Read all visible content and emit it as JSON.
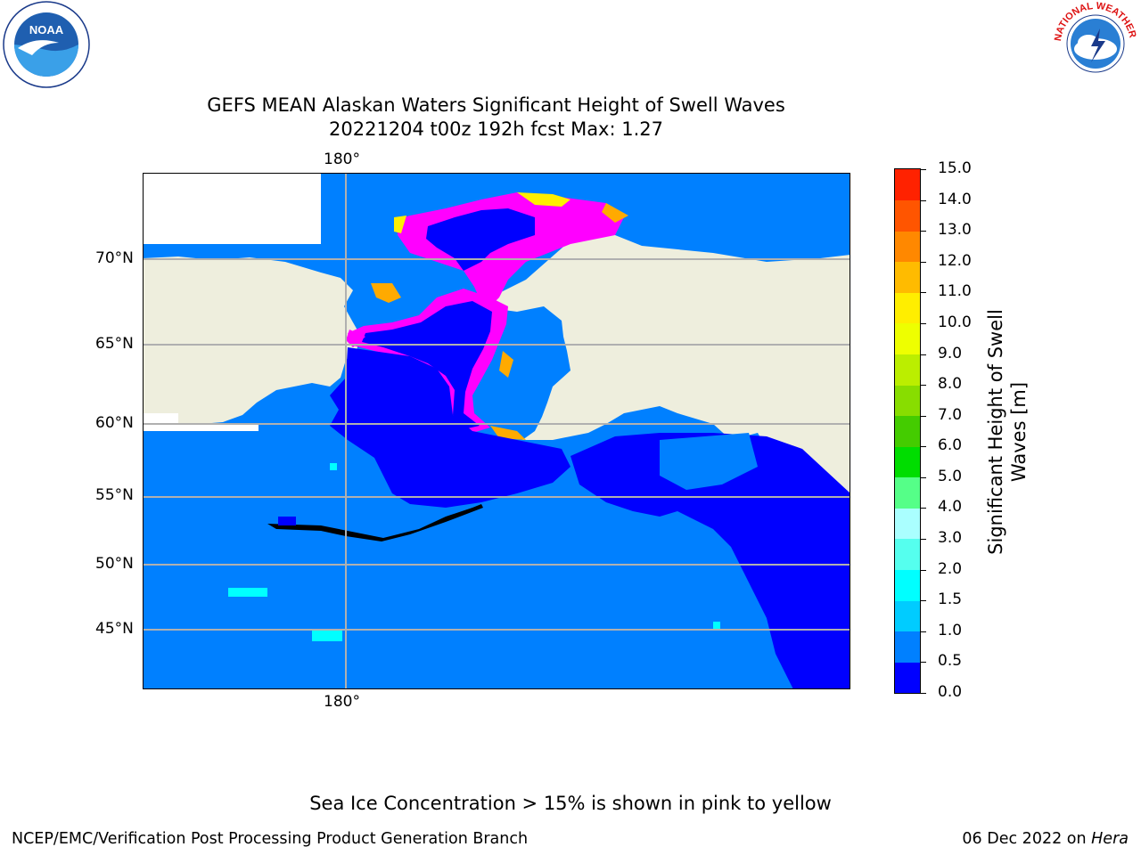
{
  "title": {
    "line1": "GEFS MEAN Alaskan Waters Significant Height of Swell Waves",
    "line2": "20221204 t00z 192h fcst   Max: 1.27"
  },
  "map": {
    "lon_label": "180°",
    "lat_labels": [
      "70°N",
      "65°N",
      "60°N",
      "55°N",
      "50°N",
      "45°N"
    ],
    "colors": {
      "ocean": "#0080ff",
      "deep": "#0000ff",
      "land": "#eeeedd",
      "ice_pink": "#ff00ff",
      "ice_light": "#ff66ee",
      "ice_yellow": "#ffee00",
      "ice_orange": "#ffaa00",
      "grid": "#b0b0b0"
    }
  },
  "colorbar": {
    "title": "Significant Height of Swell Waves [m]",
    "tick_labels": [
      "0.0",
      "0.5",
      "1.0",
      "1.5",
      "2.0",
      "3.0",
      "4.0",
      "5.0",
      "6.0",
      "7.0",
      "8.0",
      "9.0",
      "10.0",
      "11.0",
      "12.0",
      "13.0",
      "14.0",
      "15.0"
    ],
    "colors": [
      "#0000ff",
      "#0080ff",
      "#00ccff",
      "#00ffff",
      "#55ffee",
      "#aaffff",
      "#55ff88",
      "#00dd00",
      "#44cc00",
      "#88dd00",
      "#bbee00",
      "#eeff00",
      "#ffee00",
      "#ffbb00",
      "#ff8800",
      "#ff5500",
      "#ff2200"
    ]
  },
  "footer": {
    "note": "Sea Ice Concentration > 15% is shown in pink to yellow",
    "left": "NCEP/EMC/Verification Post Processing Product Generation Branch",
    "date": "06 Dec 2022 on ",
    "machine": "Hera"
  },
  "logos": {
    "noaa_text": "NOAA",
    "nws_text": "NATIONAL WEATHER SERVICE"
  }
}
